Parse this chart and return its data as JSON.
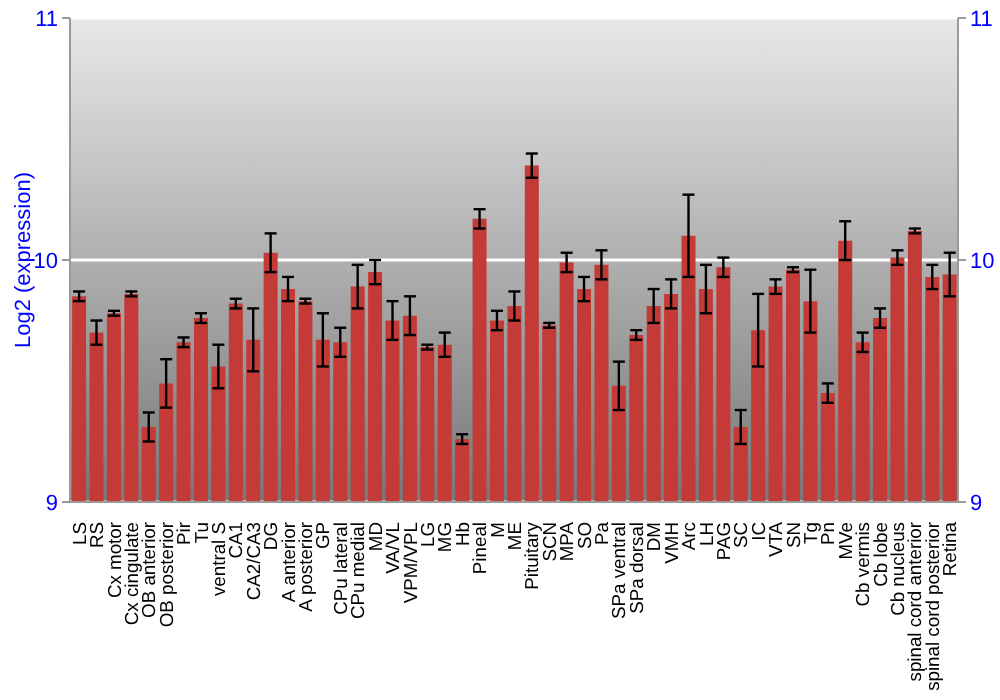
{
  "chart_data": {
    "type": "bar",
    "ylabel": "Log2 (expression)",
    "categories": [
      "LS",
      "RS",
      "Cx motor",
      "Cx cingulate",
      "OB anterior",
      "OB posterior",
      "Pir",
      "Tu",
      "ventral S",
      "CA1",
      "CA2/CA3",
      "DG",
      "A anterior",
      "A posterior",
      "GP",
      "CPu lateral",
      "CPu medial",
      "MD",
      "VA/VL",
      "VPM/VPL",
      "LG",
      "MG",
      "Hb",
      "Pineal",
      "M",
      "ME",
      "Pituitary",
      "SCN",
      "MPA",
      "SO",
      "Pa",
      "SPa ventral",
      "SPa dorsal",
      "DM",
      "VMH",
      "Arc",
      "LH",
      "PAG",
      "SC",
      "IC",
      "VTA",
      "SN",
      "Tg",
      "Pn",
      "MVe",
      "Cb vermis",
      "Cb lobe",
      "Cb nucleus",
      "spinal cord anterior",
      "spinal cord posterior",
      "Retina"
    ],
    "values": [
      9.85,
      9.7,
      9.78,
      9.86,
      9.31,
      9.49,
      9.66,
      9.76,
      9.56,
      9.82,
      9.67,
      10.03,
      9.88,
      9.83,
      9.67,
      9.66,
      9.89,
      9.95,
      9.75,
      9.77,
      9.64,
      9.65,
      9.26,
      10.17,
      9.75,
      9.81,
      10.39,
      9.73,
      9.99,
      9.88,
      9.98,
      9.48,
      9.69,
      9.81,
      9.86,
      10.1,
      9.88,
      9.97,
      9.31,
      9.71,
      9.89,
      9.96,
      9.83,
      9.45,
      10.08,
      9.66,
      9.76,
      10.01,
      10.12,
      9.93,
      9.94
    ],
    "errors": [
      0.02,
      0.05,
      0.01,
      0.01,
      0.06,
      0.1,
      0.02,
      0.02,
      0.09,
      0.02,
      0.13,
      0.08,
      0.05,
      0.01,
      0.11,
      0.06,
      0.09,
      0.05,
      0.08,
      0.08,
      0.01,
      0.05,
      0.02,
      0.04,
      0.04,
      0.06,
      0.05,
      0.01,
      0.04,
      0.05,
      0.06,
      0.1,
      0.02,
      0.07,
      0.06,
      0.17,
      0.1,
      0.04,
      0.07,
      0.15,
      0.03,
      0.01,
      0.13,
      0.04,
      0.08,
      0.04,
      0.04,
      0.03,
      0.01,
      0.05,
      0.09
    ],
    "color": "#c43a36",
    "ylim": [
      9,
      11
    ],
    "yticks": [
      9,
      10,
      11
    ],
    "y2lim": [
      9,
      11
    ],
    "y2ticks": [
      9,
      10,
      11
    ],
    "grid": "y"
  }
}
